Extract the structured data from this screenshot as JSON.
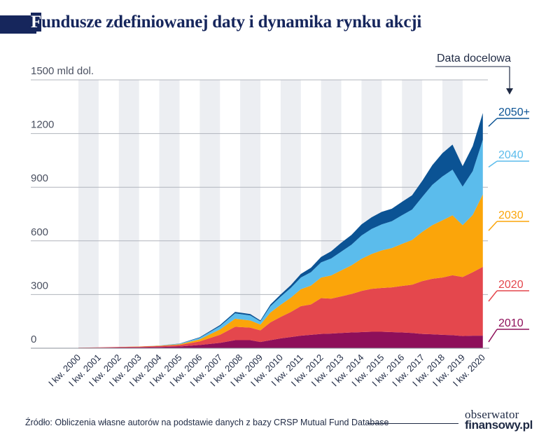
{
  "title": "Fundusze zdefiniowanej daty i dynamika rynku akcji",
  "title_first_letter": "F",
  "title_rest": "undusze zdefiniowanej daty i dynamika rynku akcji",
  "source": "Źródło: Obliczenia własne autorów na podstawie danych z bazy CRSP Mutual Fund Database",
  "logo": {
    "line1": "obserwator",
    "line2": "finansowy.pl"
  },
  "colors": {
    "2010": "#8e0f5a",
    "2020": "#e4474d",
    "2030": "#fba50a",
    "2040": "#5bbcec",
    "2050+": "#0b5394",
    "band": "#eceef2",
    "grid": "#b0b4bc",
    "text": "#1f2a44"
  },
  "chart_data": {
    "type": "area",
    "stacked": true,
    "ylabel": "mld dol.",
    "ylim": [
      0,
      1500
    ],
    "yticks": [
      0,
      300,
      600,
      900,
      1200,
      1500
    ],
    "ytick_labels": [
      "0",
      "300",
      "600",
      "900",
      "1200",
      "1500 mld dol."
    ],
    "xticks": [
      "I kw. 2000",
      "I kw. 2001",
      "I kw. 2002",
      "I kw. 2003",
      "I kw. 2004",
      "I kw. 2005",
      "I kw. 2006",
      "I kw. 2007",
      "I kw. 2008",
      "I kw. 2009",
      "I kw. 2010",
      "I kw. 2011",
      "I kw. 2012",
      "I kw. 2013",
      "I kw. 2014",
      "I kw. 2015",
      "I kw. 2016",
      "I kw. 2017",
      "I kw. 2018",
      "I kw. 2019",
      "I kw. 2020"
    ],
    "legend_title": "Data docelowa",
    "x": [
      2000.0,
      2001.0,
      2002.0,
      2003.0,
      2004.0,
      2005.0,
      2006.0,
      2007.0,
      2007.75,
      2008.5,
      2009.0,
      2009.5,
      2010.0,
      2010.5,
      2011.0,
      2011.5,
      2012.0,
      2012.5,
      2013.0,
      2013.5,
      2014.0,
      2014.5,
      2015.0,
      2015.5,
      2016.0,
      2016.5,
      2017.0,
      2017.5,
      2018.0,
      2018.5,
      2019.0,
      2019.5,
      2020.0
    ],
    "series": [
      {
        "name": "2010",
        "values": [
          2,
          3,
          4,
          5,
          7,
          10,
          18,
          30,
          45,
          45,
          35,
          45,
          55,
          62,
          70,
          75,
          80,
          82,
          85,
          88,
          90,
          92,
          92,
          90,
          88,
          85,
          80,
          78,
          75,
          73,
          68,
          70,
          70
        ]
      },
      {
        "name": "2020",
        "values": [
          1,
          2,
          3,
          4,
          5,
          8,
          20,
          45,
          75,
          70,
          65,
          100,
          120,
          140,
          165,
          170,
          200,
          195,
          205,
          215,
          230,
          240,
          245,
          250,
          260,
          270,
          295,
          310,
          320,
          335,
          330,
          355,
          385
        ]
      },
      {
        "name": "2030",
        "values": [
          0,
          0,
          0,
          1,
          2,
          4,
          12,
          30,
          45,
          40,
          32,
          55,
          68,
          80,
          95,
          105,
          115,
          130,
          145,
          160,
          180,
          195,
          210,
          220,
          235,
          250,
          275,
          300,
          320,
          335,
          290,
          320,
          405
        ]
      },
      {
        "name": "2040",
        "values": [
          0,
          0,
          0,
          0,
          1,
          3,
          8,
          18,
          30,
          28,
          18,
          35,
          45,
          55,
          65,
          75,
          85,
          95,
          105,
          115,
          130,
          140,
          145,
          150,
          160,
          170,
          195,
          225,
          245,
          255,
          215,
          245,
          305
        ]
      },
      {
        "name": "2050+",
        "values": [
          0,
          0,
          0,
          0,
          0,
          1,
          3,
          6,
          8,
          8,
          5,
          10,
          12,
          15,
          20,
          25,
          30,
          40,
          50,
          55,
          62,
          65,
          70,
          70,
          75,
          80,
          90,
          110,
          130,
          140,
          115,
          140,
          150
        ]
      }
    ]
  }
}
